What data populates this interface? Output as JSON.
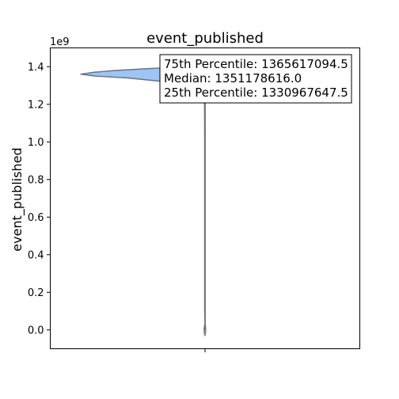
{
  "chart_data": {
    "type": "violin",
    "title": "event_published",
    "ylabel": "event_published",
    "xlabel": "",
    "y_offset_label": "1e9",
    "y_scale_factor": 1000000000,
    "ylim": [
      -0.1,
      1.5
    ],
    "yticks": [
      0.0,
      0.2,
      0.4,
      0.6,
      0.8,
      1.0,
      1.2,
      1.4
    ],
    "ytick_labels": [
      "0.0",
      "0.2",
      "0.4",
      "0.6",
      "0.8",
      "1.0",
      "1.2",
      "1.4"
    ],
    "grid": false,
    "legend": "none",
    "fill_color": "#9ec5f5",
    "edge_color": "#6a7280",
    "stats": {
      "percentile_75": 1365617094.5,
      "median": 1351178616.0,
      "percentile_25": 1330967647.5
    },
    "violin_profile": {
      "y": [
        -0.03,
        -0.02,
        0.0,
        0.02,
        0.03,
        0.1,
        0.5,
        1.0,
        1.2,
        1.28,
        1.3,
        1.32,
        1.34,
        1.35,
        1.36,
        1.37,
        1.38,
        1.39,
        1.395
      ],
      "density": [
        0.0,
        0.006,
        0.008,
        0.006,
        0.0,
        0.003,
        0.003,
        0.003,
        0.004,
        0.04,
        0.12,
        0.32,
        0.62,
        0.88,
        1.0,
        0.9,
        0.72,
        0.45,
        0.3
      ]
    },
    "annotation_lines": [
      "75th Percentile: 1365617094.5",
      "Median: 1351178616.0",
      "25th Percentile: 1330967647.5"
    ]
  }
}
